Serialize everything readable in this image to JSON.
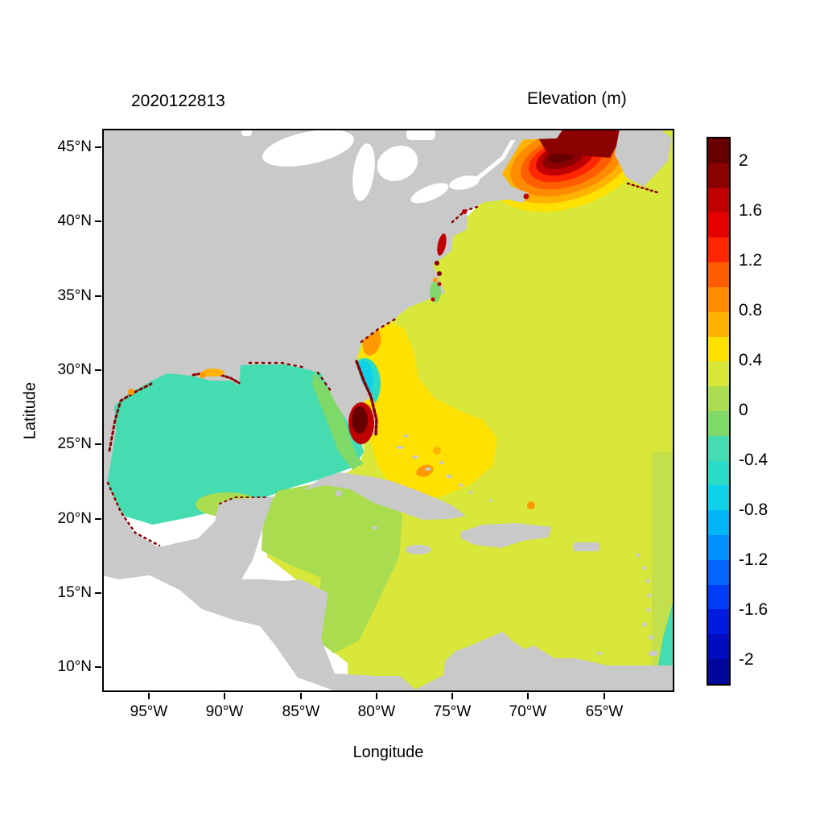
{
  "figure": {
    "run_label": "2020122813",
    "colorbar_title": "Elevation (m)",
    "xlabel": "Longitude",
    "ylabel": "Latitude"
  },
  "axes": {
    "x_ticks": [
      "95°W",
      "90°W",
      "85°W",
      "80°W",
      "75°W",
      "70°W",
      "65°W"
    ],
    "y_ticks": [
      "45°N",
      "40°N",
      "35°N",
      "30°N",
      "25°N",
      "20°N",
      "15°N",
      "10°N"
    ]
  },
  "colorbar": {
    "labels": [
      "2",
      "1.6",
      "1.2",
      "0.8",
      "0.4",
      "0",
      "-0.4",
      "-0.8",
      "-1.2",
      "-1.6",
      "-2"
    ],
    "colors_top_to_bottom": [
      "#670000",
      "#8b0000",
      "#c00000",
      "#e60000",
      "#ff2600",
      "#ff5e00",
      "#ff8c00",
      "#ffb300",
      "#ffe100",
      "#d8e73a",
      "#aadc50",
      "#7ed968",
      "#44dcb0",
      "#2adbc8",
      "#0fd2e8",
      "#00b4f5",
      "#0090ff",
      "#0066ff",
      "#003cf5",
      "#001ae0",
      "#000cc0",
      "#00089b"
    ]
  },
  "map_colors": {
    "land": "#c9c9c9",
    "lake": "#ffffff",
    "atlantic": "#d8e73a",
    "gulf": "#44dcb0",
    "west_caribbean": "#aadc50",
    "shelf_green": "#7ed968",
    "bahamas_yellow": "#ffe100",
    "orange_patch": "#ff9900",
    "amber_patch": "#ffb300",
    "cyan_patch": "#0fd2e8",
    "turquoise_fringe": "#2adbc8",
    "surge_dark_red": "#670000",
    "surge_red": "#c00000",
    "coastal_speckle": "#8b0000",
    "right_strip_green": "#c3e04c",
    "ring_colors": [
      "#ffe100",
      "#ffb300",
      "#ff8c00",
      "#ff5e00",
      "#ff2600",
      "#c00000",
      "#8b0000",
      "#670000"
    ]
  },
  "chart_data": {
    "type": "heatmap",
    "title": "Elevation (m)",
    "run_label": "2020122813",
    "xlabel": "Longitude",
    "ylabel": "Latitude",
    "x_tick_labels": [
      "95°W",
      "90°W",
      "85°W",
      "80°W",
      "75°W",
      "70°W",
      "65°W"
    ],
    "y_tick_labels": [
      "45°N",
      "40°N",
      "35°N",
      "30°N",
      "25°N",
      "20°N",
      "15°N",
      "10°N"
    ],
    "lon_range_west_deg": [
      98.1,
      60.4
    ],
    "lat_range_north_deg": [
      8.4,
      46.2
    ],
    "value_units": "m",
    "value_range": [
      -2.2,
      2.2
    ],
    "colorbar_tick_values": [
      2,
      1.6,
      1.2,
      0.8,
      0.4,
      0,
      -0.4,
      -0.8,
      -1.2,
      -1.6,
      -2
    ],
    "colorbar_step": 0.2,
    "legend_position": "right",
    "grid": false,
    "regions": [
      {
        "area": "Open Atlantic Ocean and eastern Caribbean",
        "approx_elevation_m": 0.3
      },
      {
        "area": "Gulf of Mexico interior",
        "approx_elevation_m": -0.3
      },
      {
        "area": "West Florida shelf",
        "approx_elevation_m": -0.1
      },
      {
        "area": "Western Caribbean (Yucatan to Nicaragua shelf)",
        "approx_elevation_m": 0.1
      },
      {
        "area": "Bahamas and SE US offshore (yellow band)",
        "approx_elevation_m": 0.5
      },
      {
        "area": "Off Georgia coast (orange patch)",
        "approx_elevation_m": 0.7
      },
      {
        "area": "Off NE Florida coast (cyan patch)",
        "approx_elevation_m": -0.7
      },
      {
        "area": "Gulf of Maine / Bay of Fundy maximum",
        "approx_elevation_m": 2.2
      },
      {
        "area": "South Florida / Lake Okeechobee area maximum",
        "approx_elevation_m": 2.2
      },
      {
        "area": "Coastal fringe speckles (Gulf and Atlantic coasts)",
        "approx_elevation_m": 2.0
      },
      {
        "area": "Land",
        "approx_elevation_m": null
      },
      {
        "area": "Pacific Ocean (no data)",
        "approx_elevation_m": null
      }
    ]
  }
}
